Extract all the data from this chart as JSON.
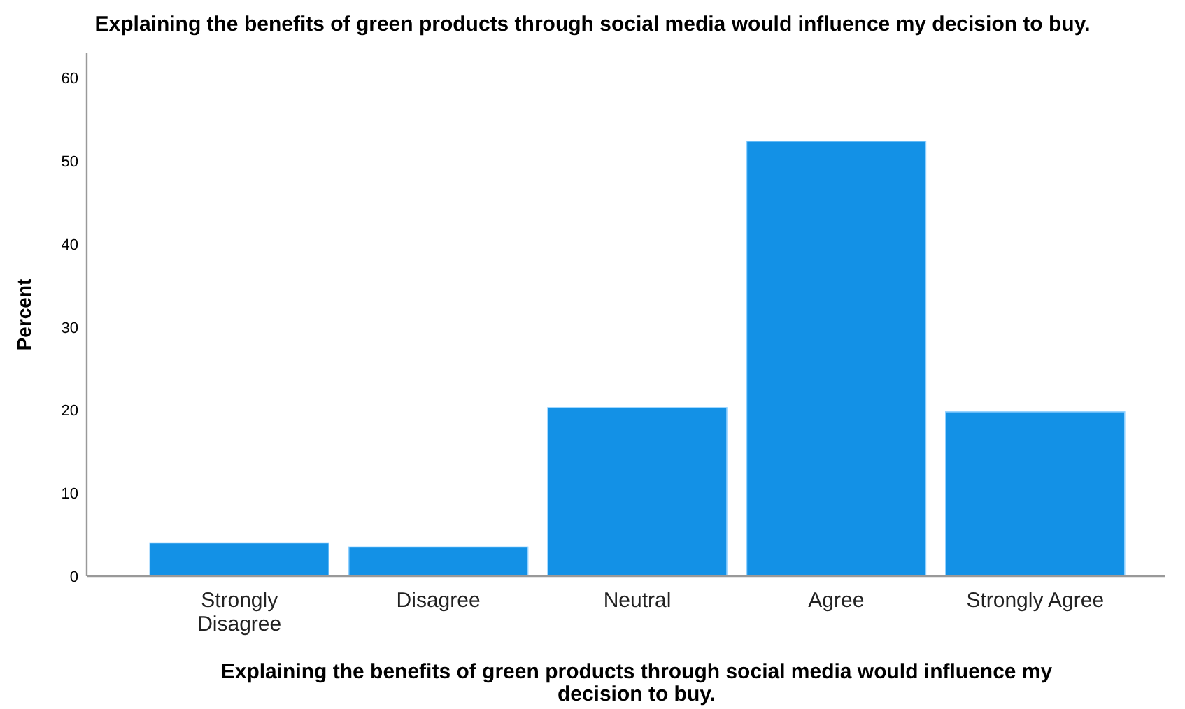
{
  "chart_data": {
    "type": "bar",
    "title": "Explaining the benefits of green products through social media would influence my decision to buy.",
    "xlabel": "Explaining the benefits of green products through social media would influence my decision to buy.",
    "ylabel": "Percent",
    "categories": [
      "Strongly Disagree",
      "Disagree",
      "Neutral",
      "Agree",
      "Strongly Agree"
    ],
    "values": [
      4.0,
      3.5,
      20.3,
      52.4,
      19.8
    ],
    "color": "#1391e6",
    "ylim": [
      0,
      63
    ],
    "yticks": [
      0,
      10,
      20,
      30,
      40,
      50,
      60
    ],
    "grid": false
  }
}
